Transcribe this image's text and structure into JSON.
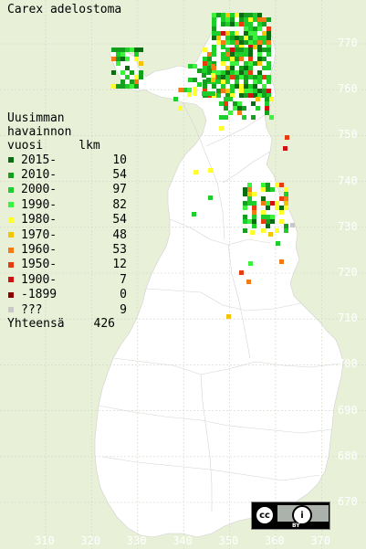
{
  "title": "Carex adelostoma",
  "legend": {
    "header": [
      "Uusimman",
      "havainnon",
      "vuosi     lkm"
    ],
    "items": [
      {
        "label": "2015-",
        "count": "10",
        "color": "#0a6d12"
      },
      {
        "label": "2010-",
        "count": "54",
        "color": "#14a01e"
      },
      {
        "label": "2000-",
        "count": "97",
        "color": "#1ecf2c"
      },
      {
        "label": "1990-",
        "count": "82",
        "color": "#3cf23c"
      },
      {
        "label": "1980-",
        "count": "54",
        "color": "#ffff2a"
      },
      {
        "label": "1970-",
        "count": "48",
        "color": "#f4c400"
      },
      {
        "label": "1960-",
        "count": "53",
        "color": "#f47a14"
      },
      {
        "label": "1950-",
        "count": "12",
        "color": "#e83c10"
      },
      {
        "label": "1900-",
        "count": "7",
        "color": "#d21010"
      },
      {
        "label": "-1899",
        "count": "0",
        "color": "#8c0000"
      },
      {
        "label": "???",
        "count": "9",
        "color": "#c8c8c8"
      }
    ],
    "total_label": "Yhteensä",
    "total_value": "426"
  },
  "grid": {
    "y_labels": [
      "770",
      "760",
      "750",
      "740",
      "730",
      "720",
      "710",
      "700",
      "690",
      "680",
      "670"
    ],
    "x_labels": [
      "310",
      "320",
      "330",
      "340",
      "350",
      "360",
      "370"
    ]
  },
  "license": {
    "cc": "cc",
    "by": "BY",
    "info": "i"
  },
  "colors": {
    "background": "#e9f0d8",
    "land": "#ffffff",
    "grid": "#c8c8c8"
  }
}
